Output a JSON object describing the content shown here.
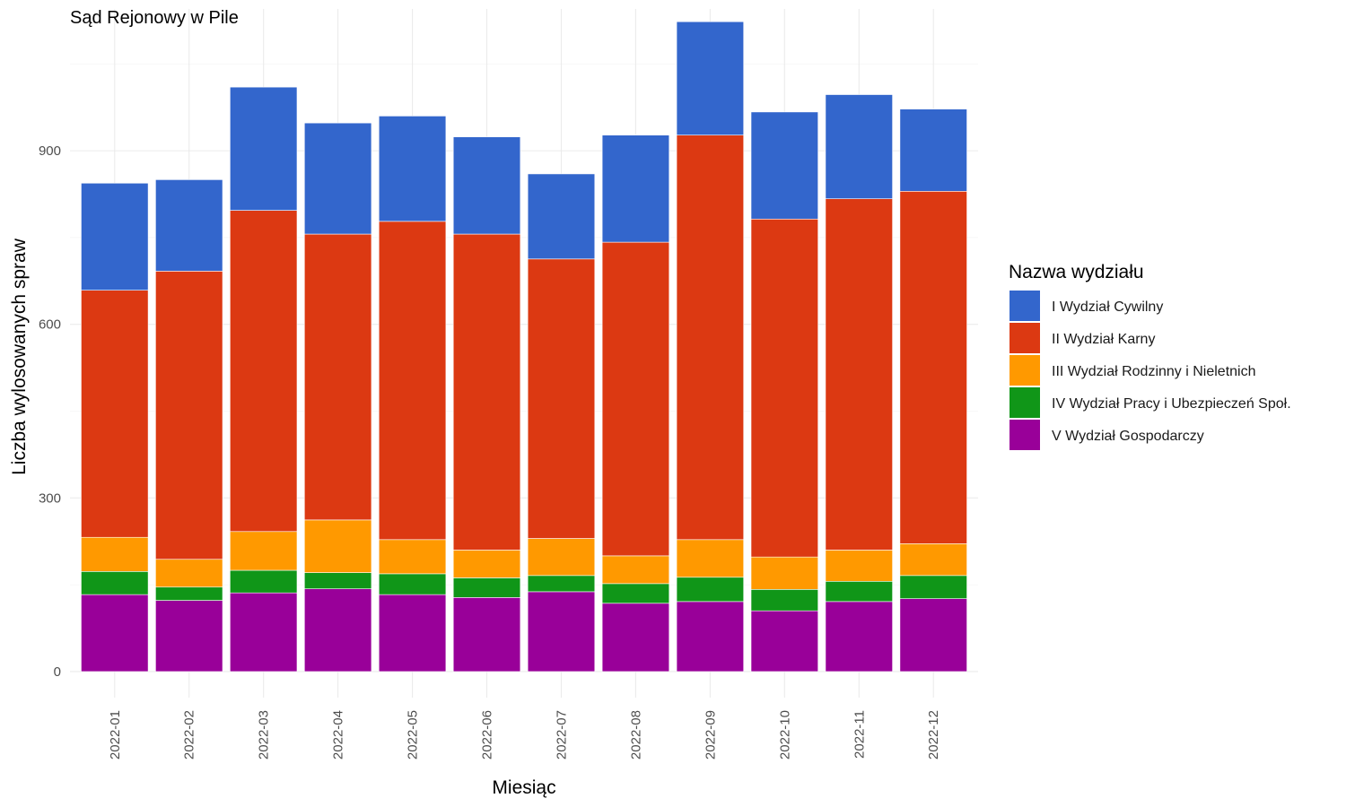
{
  "chart_data": {
    "type": "bar",
    "stacked": true,
    "title": "Sąd Rejonowy w Pile",
    "xlabel": "Miesiąc",
    "ylabel": "Liczba wylosowanych spraw",
    "ylim": [
      -45,
      1145
    ],
    "yticks": [
      0,
      300,
      600,
      900
    ],
    "grid": true,
    "legend_position": "right",
    "legend_title": "Nazwa wydziału",
    "categories": [
      "2022-01",
      "2022-02",
      "2022-03",
      "2022-04",
      "2022-05",
      "2022-06",
      "2022-07",
      "2022-08",
      "2022-09",
      "2022-10",
      "2022-11",
      "2022-12"
    ],
    "series": [
      {
        "name": "V Wydział Gospodarczy",
        "color": "#990099",
        "values": [
          133,
          123,
          136,
          143,
          133,
          128,
          138,
          118,
          121,
          105,
          121,
          126
        ]
      },
      {
        "name": "IV Wydział Pracy i Ubezpieczeń Społ.",
        "color": "#109618",
        "values": [
          40,
          23,
          39,
          28,
          36,
          34,
          28,
          34,
          42,
          37,
          35,
          40
        ]
      },
      {
        "name": "III Wydział Rodzinny i Nieletnich",
        "color": "#FF9900",
        "values": [
          59,
          48,
          67,
          91,
          59,
          48,
          64,
          48,
          65,
          56,
          54,
          55
        ]
      },
      {
        "name": "II Wydział Karny",
        "color": "#DC3912",
        "values": [
          427,
          498,
          555,
          494,
          550,
          546,
          483,
          542,
          699,
          584,
          607,
          609
        ]
      },
      {
        "name": "I Wydział Cywilny",
        "color": "#3366CC",
        "values": [
          185,
          158,
          213,
          192,
          182,
          168,
          147,
          185,
          196,
          185,
          180,
          142
        ]
      }
    ],
    "legend_order": [
      "I Wydział Cywilny",
      "II Wydział Karny",
      "III Wydział Rodzinny i Nieletnich",
      "IV Wydział Pracy i Ubezpieczeń Społ.",
      "V Wydział Gospodarczy"
    ]
  }
}
